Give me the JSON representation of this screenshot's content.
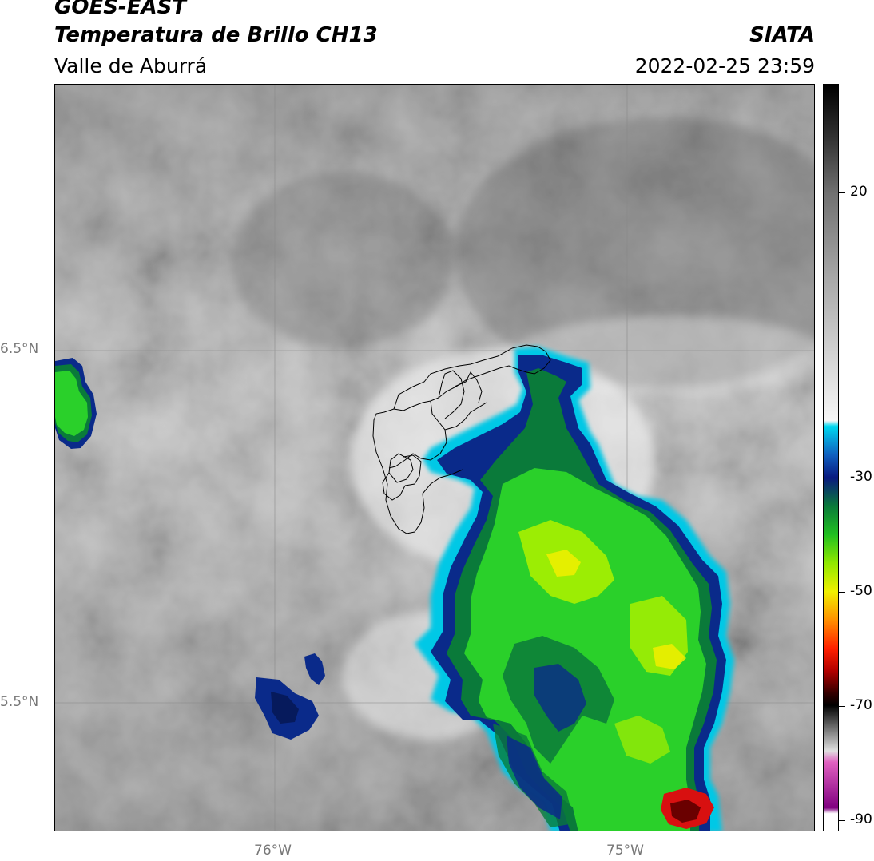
{
  "header": {
    "title_line1": "GOES-EAST",
    "title_line2": "Temperatura de Brillo CH13",
    "subtitle": "Valle de Aburrá",
    "organization": "SIATA",
    "datetime": "2022-02-25 23:59"
  },
  "map": {
    "lat_labels": [
      "6.5°N",
      "5.5°N"
    ],
    "lon_labels": [
      "76°W",
      "75°W"
    ],
    "colors": {
      "warm_gray_dark": "#5c5c5c",
      "warm_gray_mid": "#8e8e8e",
      "warm_gray_light": "#bdbdbd",
      "cold_white": "#f2f2f2",
      "cyan": "#00c8e6",
      "dark_blue": "#0a2a8a",
      "dark_green": "#0a7a3a",
      "green": "#2ad02a",
      "lime": "#a8f000",
      "yellow": "#f2ee00",
      "red": "#d81010",
      "dark_red": "#6a0000"
    }
  },
  "colorbar": {
    "tick_labels": [
      "20",
      "-30",
      "-50",
      "-70",
      "-90"
    ],
    "tick_values": [
      20,
      -30,
      -50,
      -70,
      -90
    ],
    "range": [
      -92,
      39
    ]
  }
}
